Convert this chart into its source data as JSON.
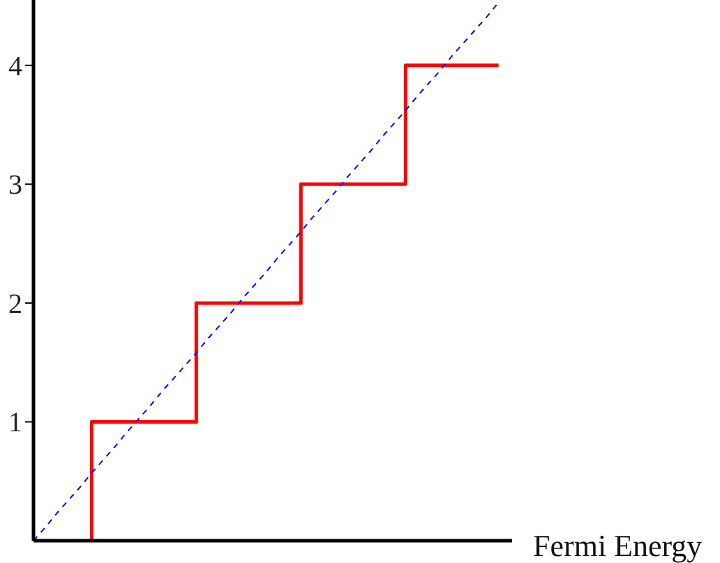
{
  "chart_data": {
    "type": "line",
    "xlabel": "Fermi Energy",
    "categories": [
      null,
      null,
      null,
      null,
      null,
      null,
      null,
      null,
      null,
      null,
      null,
      null,
      null,
      null,
      null,
      null,
      null,
      null,
      null,
      null,
      null,
      null,
      null,
      null,
      null,
      null,
      null,
      null,
      null,
      null,
      null,
      null,
      null,
      null,
      null,
      null,
      null,
      null,
      null,
      null,
      null
    ],
    "ylim": [
      0,
      4.55
    ],
    "yticks": [
      1,
      2,
      3,
      4
    ],
    "tick_labels": "y",
    "grid": false,
    "series": [
      {
        "type": "step",
        "color": "#ff0000",
        "line_style": "solid",
        "values": [
          null,
          null,
          null,
          null,
          null,
          0,
          1,
          1,
          1,
          1,
          1,
          1,
          1,
          1,
          1,
          2,
          2,
          2,
          2,
          2,
          2,
          2,
          2,
          2,
          3,
          3,
          3,
          3,
          3,
          3,
          3,
          3,
          3,
          4,
          4,
          4,
          4,
          4,
          4,
          4,
          4
        ]
      },
      {
        "color": "#0000ff",
        "line_style": "dashed",
        "values": [
          0,
          0.11,
          0.23,
          0.34,
          0.45,
          0.57,
          0.68,
          0.79,
          0.91,
          1.02,
          1.13,
          1.25,
          1.36,
          1.47,
          1.58,
          1.7,
          1.81,
          1.92,
          2.04,
          2.15,
          2.26,
          2.38,
          2.49,
          2.6,
          2.72,
          2.83,
          2.94,
          3.06,
          3.17,
          3.28,
          3.4,
          3.51,
          3.62,
          3.74,
          3.85,
          3.96,
          4.08,
          4.19,
          4.3,
          4.41,
          4.53
        ]
      }
    ]
  }
}
